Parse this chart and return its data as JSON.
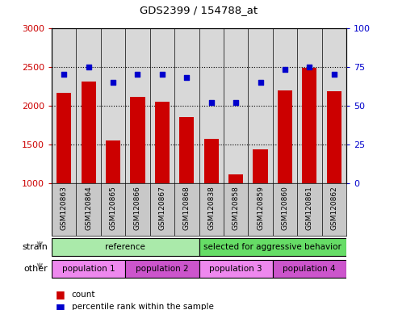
{
  "title": "GDS2399 / 154788_at",
  "samples": [
    "GSM120863",
    "GSM120864",
    "GSM120865",
    "GSM120866",
    "GSM120867",
    "GSM120868",
    "GSM120838",
    "GSM120858",
    "GSM120859",
    "GSM120860",
    "GSM120861",
    "GSM120862"
  ],
  "counts": [
    2160,
    2310,
    1545,
    2105,
    2050,
    1845,
    1570,
    1105,
    1430,
    2195,
    2490,
    2185
  ],
  "percentile_ranks": [
    70,
    75,
    65,
    70,
    70,
    68,
    52,
    52,
    65,
    73,
    75,
    70
  ],
  "ylim_left": [
    1000,
    3000
  ],
  "ylim_right": [
    0,
    100
  ],
  "yticks_left": [
    1000,
    1500,
    2000,
    2500,
    3000
  ],
  "yticks_right": [
    0,
    25,
    50,
    75,
    100
  ],
  "bar_color": "#cc0000",
  "dot_color": "#0000cc",
  "bar_bottom": 1000,
  "hline_values": [
    1500,
    2000,
    2500
  ],
  "strain_groups": [
    {
      "label": "reference",
      "start": 0,
      "end": 6,
      "color": "#aaeaaa"
    },
    {
      "label": "selected for aggressive behavior",
      "start": 6,
      "end": 12,
      "color": "#66dd66"
    }
  ],
  "other_groups": [
    {
      "label": "population 1",
      "start": 0,
      "end": 3,
      "color": "#ee88ee"
    },
    {
      "label": "population 2",
      "start": 3,
      "end": 6,
      "color": "#cc55cc"
    },
    {
      "label": "population 3",
      "start": 6,
      "end": 9,
      "color": "#ee88ee"
    },
    {
      "label": "population 4",
      "start": 9,
      "end": 12,
      "color": "#cc55cc"
    }
  ],
  "strain_label": "strain",
  "other_label": "other",
  "legend_count_label": "count",
  "legend_pct_label": "percentile rank within the sample",
  "tick_label_color_left": "#cc0000",
  "tick_label_color_right": "#0000cc",
  "background_color": "#ffffff",
  "plot_bg_color": "#d8d8d8",
  "xtick_bg_color": "#c8c8c8"
}
